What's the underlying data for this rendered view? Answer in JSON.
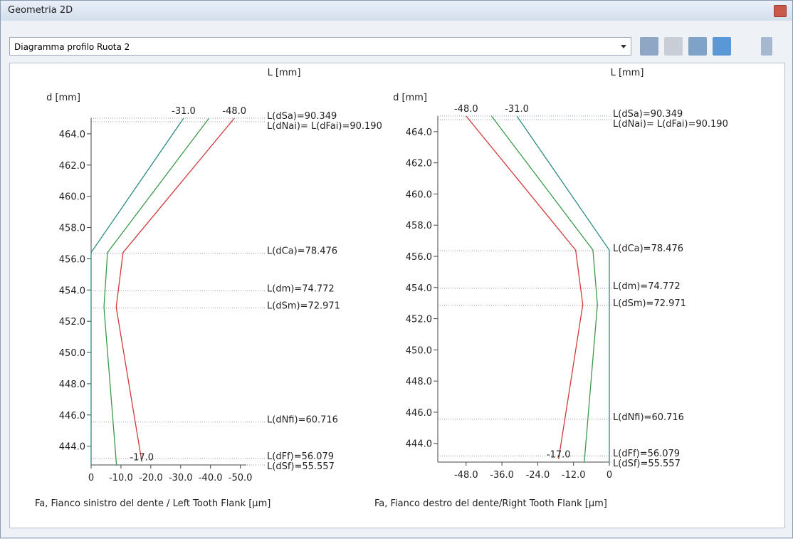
{
  "window": {
    "title": "Geometria 2D",
    "selector": "Diagramma profilo Ruota 2"
  },
  "chart_data": [
    {
      "type": "line",
      "x_title": "L [mm]",
      "y_title": "d [mm]",
      "xlabel": "Fa, Fianco sinistro del dente / Left Tooth Flank  [µm]",
      "xlim": [
        0,
        -52
      ],
      "xticks": [
        0,
        {
          "value": -10,
          "label": "-10.0"
        },
        {
          "value": -20,
          "label": "-20.0"
        },
        {
          "value": -30,
          "label": "-30.0"
        },
        {
          "value": -40,
          "label": "-40.0"
        },
        {
          "value": -50,
          "label": "-50.0"
        }
      ],
      "ylim": [
        442.8,
        465.0
      ],
      "yticks": [
        {
          "value": 444,
          "label": "444.0"
        },
        {
          "value": 446,
          "label": "446.0"
        },
        {
          "value": 448,
          "label": "448.0"
        },
        {
          "value": 450,
          "label": "450.0"
        },
        {
          "value": 452,
          "label": "452.0"
        },
        {
          "value": 454,
          "label": "454.0"
        },
        {
          "value": 456,
          "label": "456.0"
        },
        {
          "value": 458,
          "label": "458.0"
        },
        {
          "value": 460,
          "label": "460.0"
        },
        {
          "value": 462,
          "label": "462.0"
        },
        {
          "value": 464,
          "label": "464.0"
        }
      ],
      "series": [
        {
          "color": "#2a8a84",
          "d": [
            465.0,
            456.4,
            442.8
          ],
          "values": [
            -31,
            0,
            0
          ]
        },
        {
          "color": "#3a9a4a",
          "d": [
            465.0,
            456.4,
            452.9,
            442.8
          ],
          "values": [
            -39.5,
            -5.5,
            -4.3,
            -8.5
          ]
        },
        {
          "color": "#d03a3a",
          "d": [
            465.0,
            456.4,
            452.9,
            443.0
          ],
          "values": [
            -48,
            -10.7,
            -8.4,
            -17
          ]
        }
      ],
      "annotations": [
        {
          "text": "-31.0",
          "value": -31,
          "d": 465.0
        },
        {
          "text": "-48.0",
          "value": -48,
          "d": 465.0
        },
        {
          "text": "-17.0",
          "value": -17,
          "d": 443.0
        }
      ],
      "levels": [
        {
          "label": "L(dSa)=90.349",
          "d": 465.0
        },
        {
          "label": "L(dNai)= L(dFai)=90.190",
          "d": 464.77
        },
        {
          "label": "L(dCa)=78.476",
          "d": 456.36
        },
        {
          "label": "L(dm)=74.772",
          "d": 453.95
        },
        {
          "label": "L(dSm)=72.971",
          "d": 452.86
        },
        {
          "label": "L(dNfi)=60.716",
          "d": 445.55
        },
        {
          "label": "L(dFf)=56.079",
          "d": 443.2
        },
        {
          "label": "L(dSf)=55.557",
          "d": 442.8
        }
      ]
    },
    {
      "type": "line",
      "x_title": "L [mm]",
      "y_title": "d [mm]",
      "xlabel": "Fa, Fianco destro del dente/Right Tooth Flank  [µm]",
      "xlim": [
        -57.5,
        0
      ],
      "xticks": [
        {
          "value": -48,
          "label": "-48.0"
        },
        {
          "value": -36,
          "label": "-36.0"
        },
        {
          "value": -24,
          "label": "-24.0"
        },
        {
          "value": -12,
          "label": "-12.0"
        },
        0
      ],
      "ylim": [
        442.8,
        465.0
      ],
      "yticks": [
        {
          "value": 444,
          "label": "444.0"
        },
        {
          "value": 446,
          "label": "446.0"
        },
        {
          "value": 448,
          "label": "448.0"
        },
        {
          "value": 450,
          "label": "450.0"
        },
        {
          "value": 452,
          "label": "452.0"
        },
        {
          "value": 454,
          "label": "454.0"
        },
        {
          "value": 456,
          "label": "456.0"
        },
        {
          "value": 458,
          "label": "458.0"
        },
        {
          "value": 460,
          "label": "460.0"
        },
        {
          "value": 462,
          "label": "462.0"
        },
        {
          "value": 464,
          "label": "464.0"
        }
      ],
      "series": [
        {
          "color": "#2a8a84",
          "d": [
            465.0,
            456.4,
            442.8
          ],
          "values": [
            -31,
            0,
            0
          ]
        },
        {
          "color": "#3a9a4a",
          "d": [
            465.0,
            456.4,
            452.9,
            442.8
          ],
          "values": [
            -39.5,
            -5.5,
            -4.0,
            -8.4
          ]
        },
        {
          "color": "#d03a3a",
          "d": [
            465.0,
            456.4,
            452.9,
            443.0
          ],
          "values": [
            -48,
            -11.3,
            -8.9,
            -17
          ]
        }
      ],
      "annotations": [
        {
          "text": "-48.0",
          "value": -48,
          "d": 465.0
        },
        {
          "text": "-31.0",
          "value": -31,
          "d": 465.0
        },
        {
          "text": "-17.0",
          "value": -17,
          "d": 443.0
        }
      ],
      "levels": [
        {
          "label": "L(dSa)=90.349",
          "d": 465.0
        },
        {
          "label": "L(dNai)= L(dFai)=90.190",
          "d": 464.77
        },
        {
          "label": "L(dCa)=78.476",
          "d": 456.36
        },
        {
          "label": "L(dm)=74.772",
          "d": 453.95
        },
        {
          "label": "L(dSm)=72.971",
          "d": 452.86
        },
        {
          "label": "L(dNfi)=60.716",
          "d": 445.55
        },
        {
          "label": "L(dFf)=56.079",
          "d": 443.2
        },
        {
          "label": "L(dSf)=55.557",
          "d": 442.8
        }
      ]
    }
  ]
}
